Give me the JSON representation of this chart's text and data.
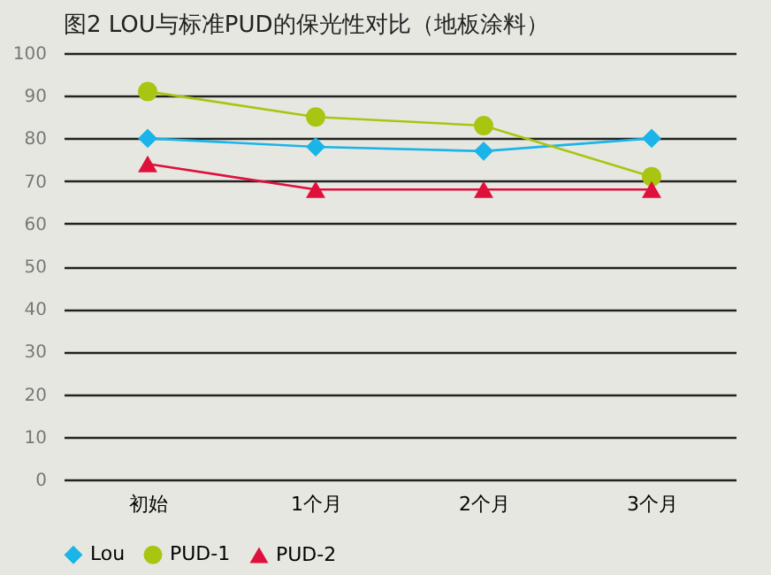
{
  "chart_data": {
    "type": "line",
    "title": "图2  LOU与标准PUD的保光性对比（地板涂料）",
    "categories": [
      "初始",
      "1个月",
      "2个月",
      "3个月"
    ],
    "series": [
      {
        "name": "Lou",
        "color": "#1ab4e8",
        "marker": "diamond",
        "values": [
          80,
          78,
          77,
          80
        ]
      },
      {
        "name": "PUD-1",
        "color": "#a8c512",
        "marker": "circle",
        "values": [
          91,
          85,
          83,
          71
        ]
      },
      {
        "name": "PUD-2",
        "color": "#e0103c",
        "marker": "triangle",
        "values": [
          74,
          68,
          68,
          68
        ]
      }
    ],
    "ylim": [
      0,
      100
    ],
    "yticks": [
      0,
      10,
      20,
      30,
      40,
      50,
      60,
      70,
      80,
      90,
      100
    ],
    "grid": "y",
    "legend": "bottom"
  }
}
